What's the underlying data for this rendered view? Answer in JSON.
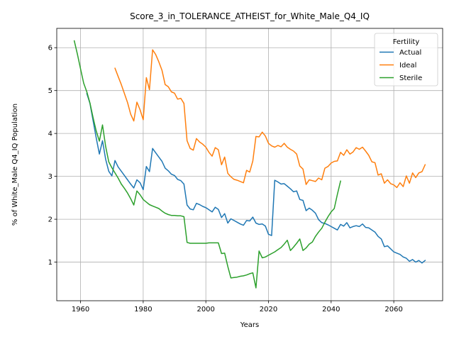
{
  "chart_data": {
    "type": "line",
    "title": "Score_3_in_TOLERANCE_ATHEIST_for_White_Male_Q4_IQ",
    "xlabel": "Years",
    "ylabel": "% of White_Male Q4_IQ Population",
    "xlim": [
      1952.4,
      2075.6
    ],
    "ylim": [
      0.1,
      6.45
    ],
    "xticks": [
      1960,
      1980,
      2000,
      2020,
      2040,
      2060
    ],
    "yticks": [
      1,
      2,
      3,
      4,
      5,
      6
    ],
    "grid": true,
    "legend": {
      "title": "Fertility",
      "placement": "top-right",
      "entries": [
        "Actual",
        "Ideal",
        "Sterile"
      ]
    },
    "series": [
      {
        "name": "Actual",
        "color": "#1f77b4",
        "x": [
          1962,
          1963,
          1964,
          1965,
          1966,
          1967,
          1968,
          1969,
          1970,
          1971,
          1972,
          1973,
          1974,
          1975,
          1976,
          1977,
          1978,
          1979,
          1980,
          1981,
          1982,
          1983,
          1984,
          1985,
          1986,
          1987,
          1988,
          1989,
          1990,
          1991,
          1992,
          1993,
          1994,
          1995,
          1996,
          1997,
          1998,
          1999,
          2000,
          2001,
          2002,
          2003,
          2004,
          2005,
          2006,
          2007,
          2008,
          2009,
          2010,
          2011,
          2012,
          2013,
          2014,
          2015,
          2016,
          2017,
          2018,
          2019,
          2020,
          2021,
          2022,
          2023,
          2024,
          2025,
          2026,
          2027,
          2028,
          2029,
          2030,
          2031,
          2032,
          2033,
          2034,
          2035,
          2036,
          2037,
          2038,
          2039,
          2040,
          2041,
          2042,
          2043,
          2044,
          2045,
          2046,
          2047,
          2048,
          2049,
          2050,
          2051,
          2052,
          2053,
          2054,
          2055,
          2056,
          2057,
          2058,
          2059,
          2060,
          2061,
          2062,
          2063,
          2064,
          2065,
          2066,
          2067,
          2068,
          2069,
          2070
        ],
        "values": [
          4.93,
          4.7,
          4.3,
          3.9,
          3.52,
          3.83,
          3.4,
          3.12,
          3.01,
          3.37,
          3.22,
          3.12,
          3.02,
          2.92,
          2.82,
          2.73,
          2.92,
          2.85,
          2.69,
          3.23,
          3.11,
          3.65,
          3.55,
          3.45,
          3.35,
          3.19,
          3.13,
          3.05,
          3.02,
          2.93,
          2.9,
          2.82,
          2.33,
          2.24,
          2.22,
          2.37,
          2.34,
          2.3,
          2.27,
          2.22,
          2.17,
          2.28,
          2.23,
          2.04,
          2.13,
          1.91,
          2.01,
          1.97,
          1.93,
          1.89,
          1.86,
          1.97,
          1.96,
          2.05,
          1.91,
          1.88,
          1.89,
          1.84,
          1.65,
          1.62,
          2.91,
          2.87,
          2.82,
          2.83,
          2.77,
          2.71,
          2.64,
          2.66,
          2.46,
          2.44,
          2.2,
          2.26,
          2.21,
          2.14,
          1.99,
          1.92,
          1.9,
          1.87,
          1.83,
          1.79,
          1.75,
          1.88,
          1.84,
          1.92,
          1.8,
          1.83,
          1.85,
          1.83,
          1.89,
          1.81,
          1.8,
          1.75,
          1.7,
          1.6,
          1.54,
          1.36,
          1.38,
          1.31,
          1.24,
          1.21,
          1.18,
          1.12,
          1.09,
          1.02,
          1.06,
          1.0,
          1.04,
          0.98,
          1.04
        ]
      },
      {
        "name": "Ideal",
        "color": "#ff7f0e",
        "x": [
          1971,
          1972,
          1973,
          1974,
          1975,
          1976,
          1977,
          1978,
          1979,
          1980,
          1981,
          1982,
          1983,
          1984,
          1985,
          1986,
          1987,
          1988,
          1989,
          1990,
          1991,
          1992,
          1993,
          1994,
          1995,
          1996,
          1997,
          1998,
          1999,
          2000,
          2001,
          2002,
          2003,
          2004,
          2005,
          2006,
          2007,
          2008,
          2009,
          2010,
          2011,
          2012,
          2013,
          2014,
          2015,
          2016,
          2017,
          2018,
          2019,
          2020,
          2021,
          2022,
          2023,
          2024,
          2025,
          2026,
          2027,
          2028,
          2029,
          2030,
          2031,
          2032,
          2033,
          2034,
          2035,
          2036,
          2037,
          2038,
          2039,
          2040,
          2041,
          2042,
          2043,
          2044,
          2045,
          2046,
          2047,
          2048,
          2049,
          2050,
          2051,
          2052,
          2053,
          2054,
          2055,
          2056,
          2057,
          2058,
          2059,
          2060,
          2061,
          2062,
          2063,
          2064,
          2065,
          2066,
          2067,
          2068,
          2069,
          2070
        ],
        "values": [
          5.52,
          5.33,
          5.14,
          4.93,
          4.72,
          4.45,
          4.29,
          4.73,
          4.55,
          4.32,
          5.3,
          5.02,
          5.95,
          5.84,
          5.67,
          5.47,
          5.14,
          5.09,
          4.97,
          4.94,
          4.8,
          4.82,
          4.7,
          3.83,
          3.65,
          3.61,
          3.88,
          3.8,
          3.75,
          3.68,
          3.56,
          3.47,
          3.67,
          3.62,
          3.27,
          3.45,
          3.07,
          2.99,
          2.93,
          2.91,
          2.88,
          2.85,
          3.14,
          3.1,
          3.36,
          3.93,
          3.92,
          4.03,
          3.94,
          3.77,
          3.71,
          3.68,
          3.72,
          3.69,
          3.77,
          3.68,
          3.63,
          3.59,
          3.52,
          3.24,
          3.17,
          2.81,
          2.92,
          2.9,
          2.88,
          2.96,
          2.92,
          3.19,
          3.23,
          3.31,
          3.35,
          3.36,
          3.56,
          3.49,
          3.62,
          3.52,
          3.57,
          3.67,
          3.63,
          3.68,
          3.59,
          3.49,
          3.34,
          3.32,
          3.03,
          3.06,
          2.84,
          2.92,
          2.83,
          2.8,
          2.74,
          2.85,
          2.76,
          3.01,
          2.84,
          3.08,
          2.97,
          3.08,
          3.11,
          3.27
        ]
      },
      {
        "name": "Sterile",
        "color": "#2ca02c",
        "x": [
          1958,
          1959,
          1960,
          1961,
          1962,
          1963,
          1964,
          1965,
          1966,
          1967,
          1968,
          1969,
          1970,
          1971,
          1972,
          1973,
          1974,
          1975,
          1976,
          1977,
          1978,
          1979,
          1980,
          1981,
          1982,
          1983,
          1984,
          1985,
          1986,
          1987,
          1988,
          1989,
          1990,
          1991,
          1992,
          1993,
          1994,
          1995,
          1996,
          1997,
          1998,
          1999,
          2000,
          2001,
          2002,
          2003,
          2004,
          2005,
          2006,
          2007,
          2008,
          2009,
          2010,
          2011,
          2012,
          2013,
          2014,
          2015,
          2016,
          2017,
          2018,
          2019,
          2020,
          2021,
          2022,
          2023,
          2024,
          2025,
          2026,
          2027,
          2028,
          2029,
          2030,
          2031,
          2032,
          2033,
          2034,
          2035,
          2036,
          2037,
          2038,
          2039,
          2040,
          2041,
          2042,
          2043
        ],
        "values": [
          6.16,
          5.85,
          5.5,
          5.17,
          4.97,
          4.71,
          4.37,
          4.06,
          3.82,
          4.2,
          3.7,
          3.34,
          3.2,
          3.08,
          2.96,
          2.82,
          2.72,
          2.61,
          2.48,
          2.33,
          2.66,
          2.57,
          2.46,
          2.4,
          2.34,
          2.31,
          2.28,
          2.25,
          2.19,
          2.14,
          2.11,
          2.09,
          2.09,
          2.08,
          2.08,
          2.06,
          1.46,
          1.44,
          1.44,
          1.44,
          1.44,
          1.44,
          1.44,
          1.45,
          1.45,
          1.45,
          1.45,
          1.2,
          1.21,
          0.9,
          0.63,
          0.64,
          0.65,
          0.67,
          0.68,
          0.7,
          0.73,
          0.75,
          0.4,
          1.26,
          1.1,
          1.12,
          1.16,
          1.2,
          1.24,
          1.29,
          1.34,
          1.42,
          1.51,
          1.27,
          1.35,
          1.44,
          1.54,
          1.27,
          1.33,
          1.42,
          1.47,
          1.6,
          1.7,
          1.79,
          1.93,
          2.06,
          2.17,
          2.25,
          2.58,
          2.89
        ]
      }
    ]
  }
}
